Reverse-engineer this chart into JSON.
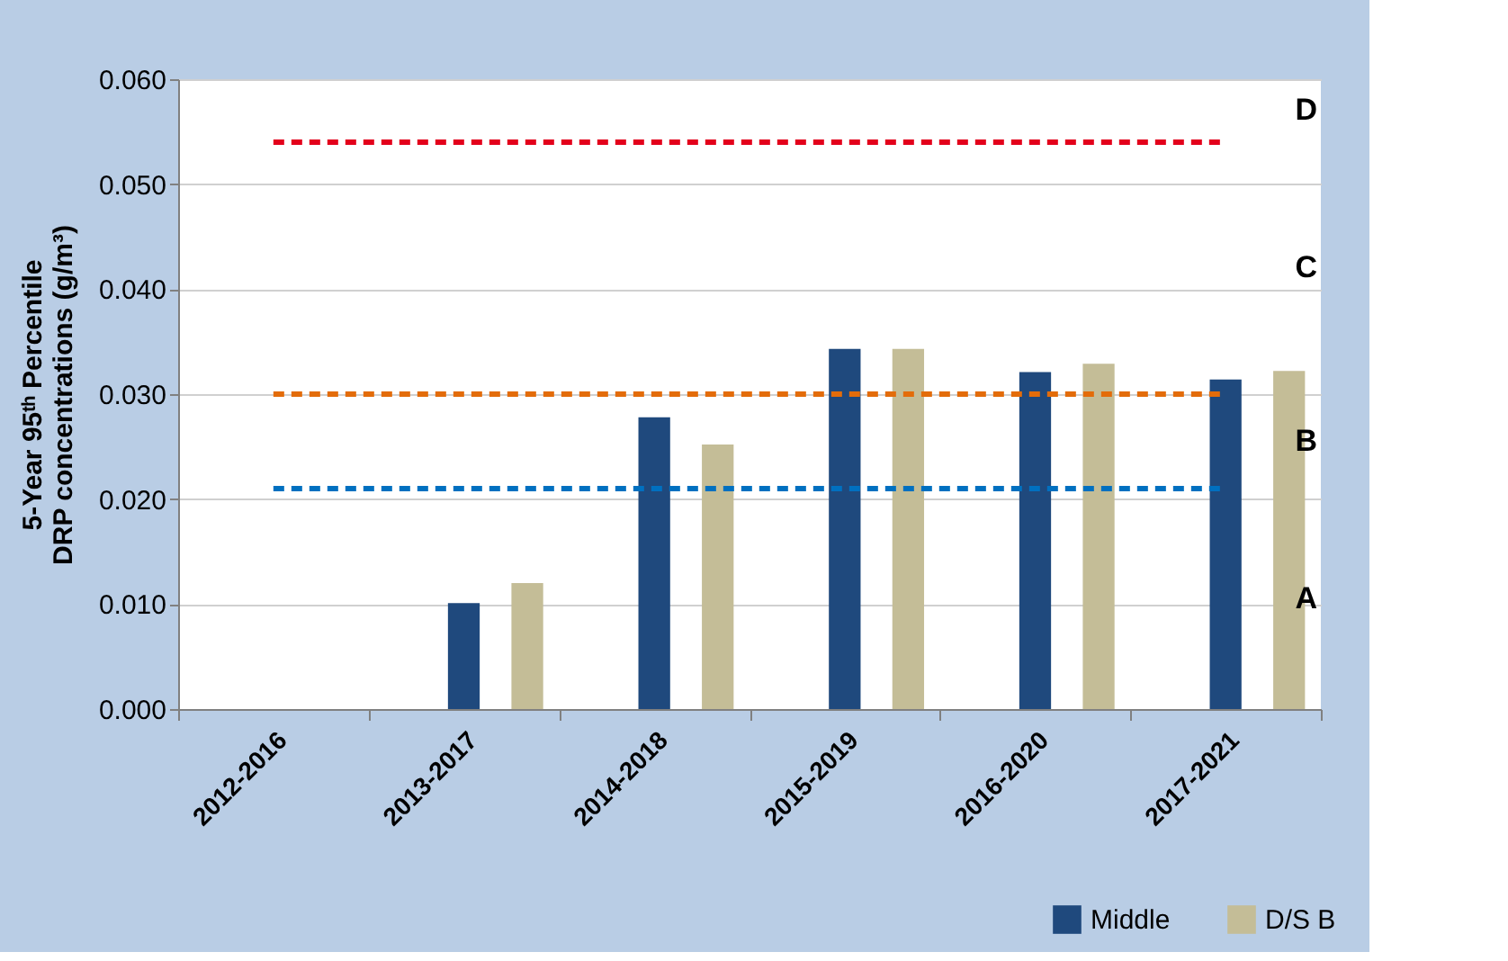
{
  "chart_data": {
    "type": "bar",
    "ylabel": "5-Year 95ᵗʰ Percentile DRP concentrations (g/m³)",
    "categories": [
      "2012-2016",
      "2013-2017",
      "2014-2018",
      "2015-2019",
      "2016-2020",
      "2017-2021"
    ],
    "series": [
      {
        "name": "Middle",
        "color": "#1f497d",
        "values": [
          null,
          0.0101,
          0.0278,
          0.0343,
          0.0321,
          0.0314
        ]
      },
      {
        "name": "D/S B",
        "color": "#c4bd97",
        "values": [
          null,
          0.012,
          0.0252,
          0.0343,
          0.0329,
          0.0322
        ]
      }
    ],
    "ylim": [
      0,
      0.06
    ],
    "yticks": [
      {
        "value": 0,
        "label": "0.000"
      },
      {
        "value": 0.01,
        "label": "0.010"
      },
      {
        "value": 0.02,
        "label": "0.020"
      },
      {
        "value": 0.03,
        "label": "0.030"
      },
      {
        "value": 0.04,
        "label": "0.040"
      },
      {
        "value": 0.05,
        "label": "0.050"
      },
      {
        "value": 0.06,
        "label": "0.060"
      }
    ],
    "ref_lines": [
      {
        "axis": "y",
        "value": 0.054,
        "label": null,
        "color": "#e3001b",
        "line_style": "dashed"
      },
      {
        "axis": "y",
        "value": 0.03,
        "label": null,
        "color": "#e36c0a",
        "line_style": "dashed"
      },
      {
        "axis": "y",
        "value": 0.021,
        "label": null,
        "color": "#0070c0",
        "line_style": "dashed"
      }
    ],
    "annotations": [
      "A",
      "B",
      "C",
      "D"
    ],
    "grid": "y",
    "legend": "bottom right"
  }
}
